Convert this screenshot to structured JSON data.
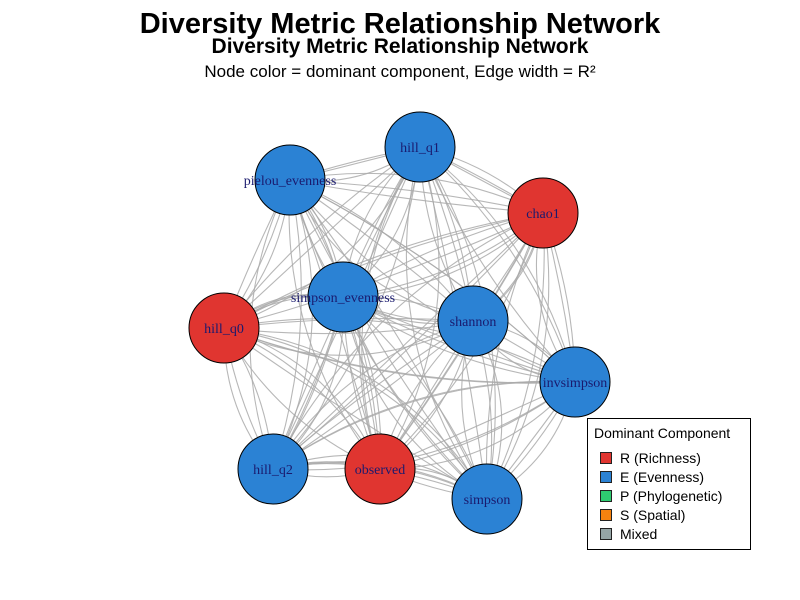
{
  "title": "Diversity Metric Relationship Network",
  "subtitle": "Diversity Metric Relationship Network",
  "caption": "Node color = dominant component, Edge width = R²",
  "colors": {
    "richness": "#e03530",
    "evenness": "#2b82d4",
    "phylogenetic": "#2ecc71",
    "spatial": "#f5820f",
    "mixed": "#95a5a6",
    "edge": "#aaaaaa"
  },
  "nodes": [
    {
      "id": "hill_q1",
      "label": "hill_q1",
      "component": "evenness"
    },
    {
      "id": "pielou_evenness",
      "label": "pielou_evenness",
      "component": "evenness"
    },
    {
      "id": "chao1",
      "label": "chao1",
      "component": "richness"
    },
    {
      "id": "simpson_evenness",
      "label": "simpson_evenness",
      "component": "evenness"
    },
    {
      "id": "shannon",
      "label": "shannon",
      "component": "evenness"
    },
    {
      "id": "hill_q0",
      "label": "hill_q0",
      "component": "richness"
    },
    {
      "id": "invsimpson",
      "label": "invsimpson",
      "component": "evenness"
    },
    {
      "id": "hill_q2",
      "label": "hill_q2",
      "component": "evenness"
    },
    {
      "id": "observed",
      "label": "observed",
      "component": "richness"
    },
    {
      "id": "simpson",
      "label": "simpson",
      "component": "evenness"
    }
  ],
  "legend": {
    "title": "Dominant Component",
    "items": [
      {
        "label": "R (Richness)",
        "color": "#e03530"
      },
      {
        "label": "E (Evenness)",
        "color": "#2b82d4"
      },
      {
        "label": "P (Phylogenetic)",
        "color": "#2ecc71"
      },
      {
        "label": "S (Spatial)",
        "color": "#f5820f"
      },
      {
        "label": "Mixed",
        "color": "#95a5a6"
      }
    ]
  }
}
